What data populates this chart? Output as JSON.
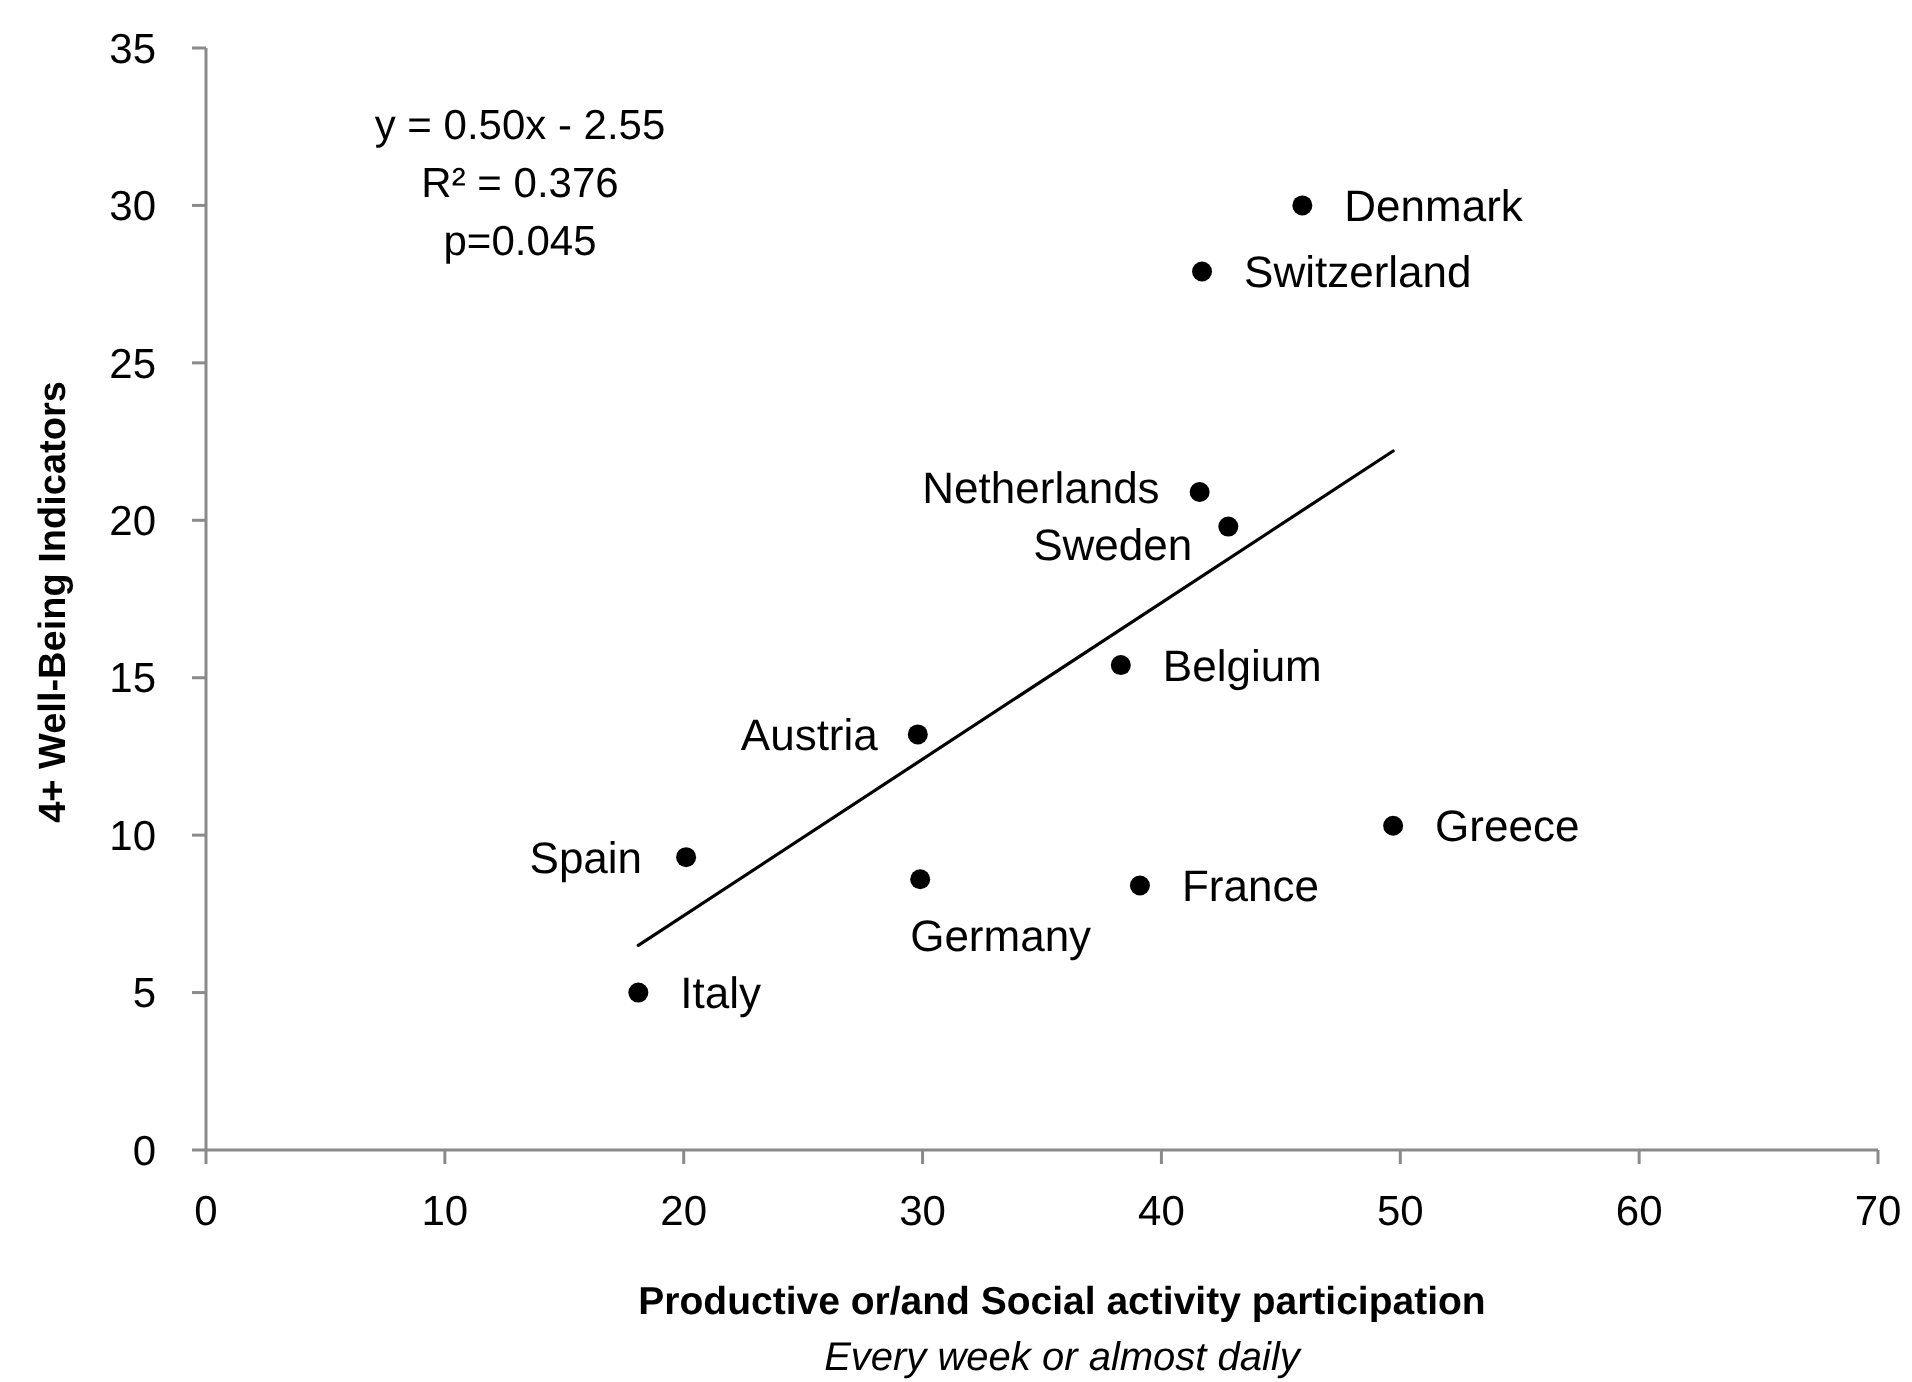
{
  "chart_data": {
    "type": "scatter",
    "xlabel": "Productive or/and Social activity participation\nEvery week or almost daily",
    "ylabel": "4+ Well-Being Indicators",
    "xlim": [
      0,
      70
    ],
    "xticks": [
      0,
      10,
      20,
      30,
      40,
      50,
      60,
      70
    ],
    "ylim": [
      0,
      35
    ],
    "yticks": [
      0,
      5,
      10,
      15,
      20,
      25,
      30,
      35
    ],
    "series": [
      {
        "type": "scatter",
        "color": "#000000",
        "marker": "circle",
        "x": [
          45.9,
          41.7,
          41.6,
          42.8,
          38.3,
          29.8,
          20.1,
          18.1,
          29.9,
          39.1,
          49.7
        ],
        "values": [
          30.0,
          27.9,
          20.9,
          19.8,
          15.4,
          13.2,
          9.3,
          5.0,
          8.6,
          8.4,
          10.3
        ]
      },
      {
        "type": "line",
        "color": "#000000",
        "x": [
          18.1,
          49.7
        ],
        "values": [
          6.5,
          22.2
        ]
      }
    ],
    "annotations": [
      "y = 0.50x - 2.55",
      "R² = 0.376",
      "p=0.045",
      {
        "text": "Denmark",
        "x": 45.9,
        "y": 30.0
      },
      {
        "text": "Switzerland",
        "x": 41.7,
        "y": 27.9
      },
      {
        "text": "Netherlands",
        "x": 41.6,
        "y": 20.9
      },
      {
        "text": "Sweden",
        "x": 42.8,
        "y": 19.8
      },
      {
        "text": "Belgium",
        "x": 38.3,
        "y": 15.4
      },
      {
        "text": "Austria",
        "x": 29.8,
        "y": 13.2
      },
      {
        "text": "Spain",
        "x": 20.1,
        "y": 9.3
      },
      {
        "text": "Italy",
        "x": 18.1,
        "y": 5.0
      },
      {
        "text": "Germany",
        "x": 29.9,
        "y": 8.6
      },
      {
        "text": "France",
        "x": 39.1,
        "y": 8.4
      },
      {
        "text": "Greece",
        "x": 49.7,
        "y": 10.3
      }
    ]
  }
}
